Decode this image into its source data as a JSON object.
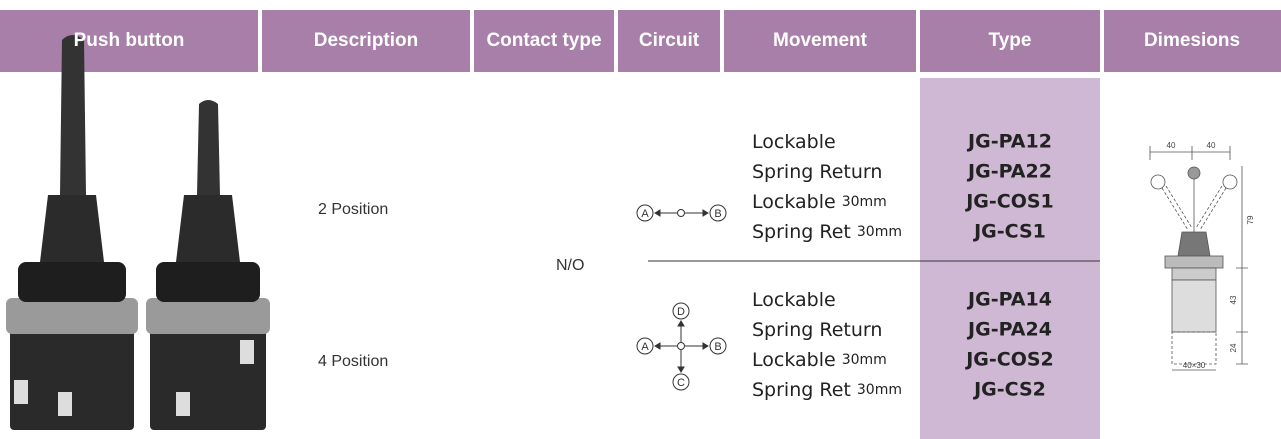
{
  "header": {
    "columns": [
      "Push button",
      "Description",
      "Contact type",
      "Circuit",
      "Movement",
      "Type",
      "Dimesions"
    ]
  },
  "contact_type": "N/O",
  "rows": [
    {
      "description": "2 Position",
      "circuit": {
        "left": "A",
        "right": "B"
      },
      "movement": [
        {
          "text": "Lockable"
        },
        {
          "text": "Spring Return"
        },
        {
          "text": "Lockable",
          "size": "30mm"
        },
        {
          "text": "Spring Ret",
          "size": "30mm"
        }
      ],
      "types": [
        "JG-PA12",
        "JG-PA22",
        "JG-COS1",
        "JG-CS1"
      ]
    },
    {
      "description": "4 Position",
      "circuit": {
        "left": "A",
        "right": "B",
        "bottom": "C",
        "top": "D"
      },
      "movement": [
        {
          "text": "Lockable"
        },
        {
          "text": "Spring Return"
        },
        {
          "text": "Lockable",
          "size": "30mm"
        },
        {
          "text": "Spring Ret",
          "size": "30mm"
        }
      ],
      "types": [
        "JG-PA14",
        "JG-PA24",
        "JG-COS2",
        "JG-CS2"
      ]
    }
  ],
  "dimensions": {
    "left_width": "40",
    "right_width": "40",
    "lever_height": "79",
    "body_height": "43",
    "base_height": "24",
    "base_size": "40×30"
  }
}
